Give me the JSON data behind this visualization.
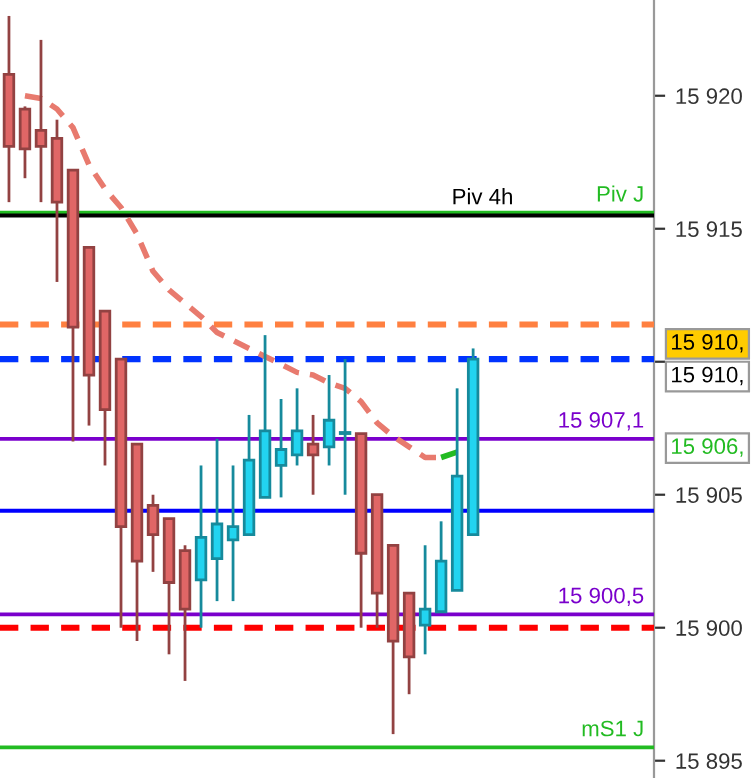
{
  "chart_data": {
    "type": "candlestick",
    "categories": [
      null,
      null,
      null,
      null,
      null,
      null,
      null,
      null,
      null,
      null,
      null,
      null,
      null,
      null,
      null,
      null,
      null,
      null,
      null,
      null,
      null,
      null,
      null,
      null,
      null,
      null,
      null,
      null,
      null,
      null
    ],
    "ohlc": [
      [
        15920.8,
        15923.0,
        15916.0,
        15918.1
      ],
      [
        15919.5,
        15919.6,
        15916.9,
        15918.0
      ],
      [
        15918.7,
        15922.1,
        15916.0,
        15918.1
      ],
      [
        15918.4,
        15919.1,
        15913.0,
        15916.0
      ],
      [
        15917.2,
        15917.2,
        15907.0,
        15911.3
      ],
      [
        15914.3,
        15914.3,
        15907.6,
        15909.5
      ],
      [
        15911.9,
        15911.9,
        15906.1,
        15908.2
      ],
      [
        15910.1,
        15910.1,
        15900.0,
        15903.8
      ],
      [
        15906.9,
        15906.9,
        15899.5,
        15902.5
      ],
      [
        15904.6,
        15905.0,
        15902.1,
        15903.5
      ],
      [
        15904.1,
        15904.1,
        15899.0,
        15901.7
      ],
      [
        15902.9,
        15903.1,
        15898.0,
        15900.7
      ],
      [
        15901.8,
        15906.1,
        15900.0,
        15903.4
      ],
      [
        15902.6,
        15907.1,
        15901.0,
        15903.9
      ],
      [
        15903.3,
        15906.1,
        15901.0,
        15903.8
      ],
      [
        15903.5,
        15908.0,
        15903.5,
        15906.3
      ],
      [
        15904.9,
        15911.0,
        15904.9,
        15907.4
      ],
      [
        15906.1,
        15908.6,
        15904.9,
        15906.7
      ],
      [
        15906.5,
        15909.0,
        15906.1,
        15907.4
      ],
      [
        15906.9,
        15908.0,
        15905.0,
        15906.5
      ],
      [
        15906.8,
        15909.5,
        15906.1,
        15907.8
      ],
      [
        15907.3,
        15910.1,
        15905.0,
        15907.3
      ],
      [
        15907.3,
        15907.3,
        15900.0,
        15902.8
      ],
      [
        15905.0,
        15905.0,
        15900.0,
        15901.3
      ],
      [
        15903.1,
        15903.1,
        15896.0,
        15899.5
      ],
      [
        15901.3,
        15901.3,
        15897.5,
        15898.9
      ],
      [
        15900.1,
        15903.1,
        15899.0,
        15900.7
      ],
      [
        15900.6,
        15904.0,
        15900.6,
        15902.5
      ],
      [
        15901.4,
        15909.0,
        15901.4,
        15905.7
      ],
      [
        15903.5,
        15910.5,
        15903.5,
        15910.1
      ]
    ],
    "colors": [
      "#e06666",
      "#e06666",
      "#e06666",
      "#e06666",
      "#e06666",
      "#e06666",
      "#e06666",
      "#e06666",
      "#e06666",
      "#e06666",
      "#e06666",
      "#e06666",
      "#22d4f0",
      "#22d4f0",
      "#22d4f0",
      "#22d4f0",
      "#22d4f0",
      "#22d4f0",
      "#22d4f0",
      "#e06666",
      "#22d4f0",
      "#22d4f0",
      "#e06666",
      "#e06666",
      "#e06666",
      "#e06666",
      "#22d4f0",
      "#22d4f0",
      "#22d4f0",
      "#22d4f0"
    ],
    "series": [
      {
        "type": "line",
        "color": "#e87a6e",
        "line_style": "dashed",
        "values": [
          null,
          15920.0,
          15919.9,
          15919.5,
          15918.8,
          15917.4,
          15916.5,
          15915.8,
          15914.8,
          15913.4,
          15912.7,
          15912.2,
          15911.7,
          15911.1,
          15910.8,
          15910.5,
          15910.2,
          15909.9,
          15909.6,
          15909.5,
          15909.2,
          15909.0,
          15908.5,
          15907.7,
          15907.2,
          15906.8,
          15906.4,
          15906.4,
          null,
          null
        ]
      },
      {
        "type": "line",
        "color": "#22bb22",
        "line_style": "dashed",
        "values": [
          null,
          null,
          null,
          null,
          null,
          null,
          null,
          null,
          null,
          null,
          null,
          null,
          null,
          null,
          null,
          null,
          null,
          null,
          null,
          null,
          null,
          null,
          null,
          null,
          null,
          null,
          null,
          15906.4,
          15906.6,
          null
        ]
      }
    ],
    "ref_lines": [
      {
        "axis": "y",
        "value": 15915.6,
        "label": "Piv J",
        "color": "#22bb22",
        "line_style": "solid"
      },
      {
        "axis": "y",
        "value": 15915.5,
        "label": "Piv 4h",
        "color": "#000000",
        "line_style": "solid"
      },
      {
        "axis": "y",
        "value": 15911.4,
        "color": "#ff8040",
        "line_style": "dashed"
      },
      {
        "axis": "y",
        "value": 15910.1,
        "color": "#0033ff",
        "line_style": "dashed"
      },
      {
        "axis": "y",
        "value": 15907.1,
        "label": "15 907,1",
        "color": "#7a00cc",
        "line_style": "solid"
      },
      {
        "axis": "y",
        "value": 15904.4,
        "color": "#0000ff",
        "line_style": "solid"
      },
      {
        "axis": "y",
        "value": 15900.5,
        "label": "15 900,5",
        "color": "#7a00cc",
        "line_style": "solid"
      },
      {
        "axis": "y",
        "value": 15900.0,
        "color": "#ff0000",
        "line_style": "dashed"
      },
      {
        "axis": "y",
        "value": 15895.5,
        "label": "mS1 J",
        "color": "#22bb22",
        "line_style": "solid"
      }
    ],
    "annotations": [
      "15 910,",
      "15 910,",
      "15 906,"
    ],
    "ylim": [
      15894.35,
      15923.6
    ],
    "yticks": [
      {
        "value": 15895,
        "label": "15 895"
      },
      {
        "value": 15900,
        "label": "15 900"
      },
      {
        "value": 15905,
        "label": "15 905"
      },
      {
        "value": 15910,
        "label": null
      },
      {
        "value": 15915,
        "label": "15 915"
      },
      {
        "value": 15920,
        "label": "15 920"
      }
    ],
    "tick_labels": "y"
  }
}
